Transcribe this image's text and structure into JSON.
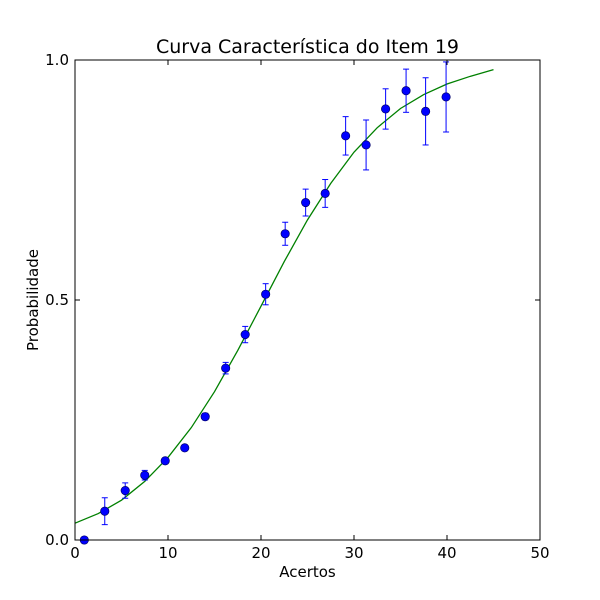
{
  "chart_data": {
    "type": "scatter",
    "title": "Curva Característica do Item 19",
    "xlabel": "Acertos",
    "ylabel": "Probabilidade",
    "xlim": [
      0,
      50
    ],
    "ylim": [
      0.0,
      1.0
    ],
    "x_ticks": [
      0,
      10,
      20,
      30,
      40,
      50
    ],
    "x_tick_labels": [
      "0",
      "10",
      "20",
      "30",
      "40",
      "50"
    ],
    "y_ticks": [
      0.0,
      0.5,
      1.0
    ],
    "y_tick_labels": [
      "0.0",
      "0.5",
      "1.0"
    ],
    "grid": false,
    "colors": {
      "points": "#0000ff",
      "curve": "#008000",
      "errorbars": "#0000ff"
    },
    "series": [
      {
        "kind": "points-with-errorbars",
        "x": [
          1.0,
          3.2,
          5.4,
          7.5,
          9.7,
          11.8,
          14.0,
          16.2,
          18.3,
          20.5,
          22.6,
          24.8,
          26.9,
          29.1,
          31.3,
          33.4,
          35.6,
          37.7,
          39.9
        ],
        "y": [
          0.0,
          0.06,
          0.103,
          0.135,
          0.165,
          0.192,
          0.257,
          0.358,
          0.428,
          0.512,
          0.638,
          0.703,
          0.722,
          0.842,
          0.823,
          0.898,
          0.936,
          0.893,
          0.923
        ],
        "y_err": [
          0.0,
          0.028,
          0.016,
          0.01,
          0.006,
          0.006,
          0.007,
          0.012,
          0.017,
          0.022,
          0.024,
          0.028,
          0.029,
          0.04,
          0.052,
          0.042,
          0.045,
          0.07,
          0.073
        ]
      },
      {
        "kind": "fitted-curve",
        "x": [
          0,
          2.5,
          5,
          7.5,
          10,
          12.5,
          15,
          17.5,
          20,
          22.5,
          25,
          27.5,
          30,
          32.5,
          35,
          37.5,
          40,
          42.5,
          45
        ],
        "y": [
          0.035,
          0.055,
          0.083,
          0.122,
          0.172,
          0.234,
          0.309,
          0.395,
          0.487,
          0.58,
          0.667,
          0.743,
          0.808,
          0.859,
          0.899,
          0.928,
          0.95,
          0.966,
          0.98
        ]
      }
    ]
  }
}
